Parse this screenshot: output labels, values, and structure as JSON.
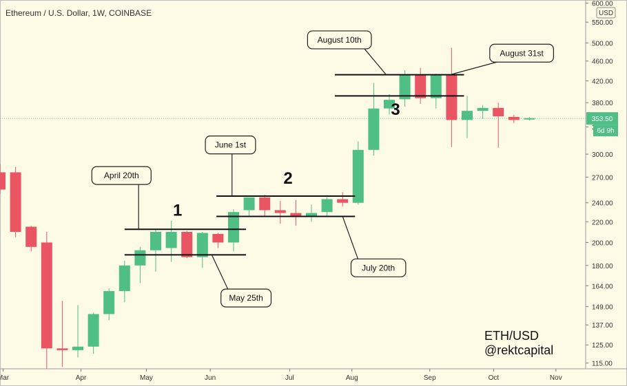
{
  "header": {
    "title": "Ethereum / U.S. Dollar, 1W, COINBASE"
  },
  "axis": {
    "currency_badge": "USD",
    "price_label": "353.50",
    "countdown_label": "6d 9h"
  },
  "watermark": {
    "line1": "ETH/USD",
    "line2": "@rektcapital"
  },
  "colors": {
    "up": "#4fbf86",
    "down": "#ea5563",
    "bg": "#fdfbe6",
    "price_line": "#4fbf86"
  },
  "chart_data": {
    "type": "candlestick",
    "scale": "log",
    "ylim": [
      112,
      605
    ],
    "y_ticks": [
      115,
      125,
      137,
      149,
      164,
      180,
      200,
      220,
      240,
      270,
      300,
      340,
      380,
      420,
      460,
      500,
      550,
      600
    ],
    "y_tick_labels": [
      "115.00",
      "125.00",
      "137.00",
      "149.00",
      "164.00",
      "180.00",
      "200.00",
      "220.00",
      "240.00",
      "270.00",
      "300.00",
      "340.00",
      "380.00",
      "420.00",
      "460.00",
      "500.00",
      "550.00",
      "600.00"
    ],
    "x_labels": [
      "Mar",
      "Apr",
      "May",
      "Jun",
      "Jul",
      "Aug",
      "Sep",
      "Oct",
      "Nov"
    ],
    "x_label_index": [
      0.2,
      5.2,
      9.4,
      13.5,
      18.6,
      22.6,
      27.6,
      31.7,
      35.7
    ],
    "current_price": 353.5,
    "candles": [
      {
        "o": 276,
        "h": 287,
        "c": 255,
        "l": 250
      },
      {
        "o": 276,
        "h": 283,
        "c": 210,
        "l": 205
      },
      {
        "o": 215,
        "h": 216,
        "c": 196,
        "l": 192
      },
      {
        "o": 200,
        "h": 210,
        "c": 123,
        "l": 112
      },
      {
        "o": 123,
        "h": 153,
        "c": 122,
        "l": 113
      },
      {
        "o": 122,
        "h": 150,
        "c": 124,
        "l": 118
      },
      {
        "o": 124,
        "h": 145,
        "c": 144,
        "l": 120
      },
      {
        "o": 144,
        "h": 162,
        "c": 160,
        "l": 140
      },
      {
        "o": 160,
        "h": 184,
        "c": 180,
        "l": 152
      },
      {
        "o": 180,
        "h": 196,
        "c": 193,
        "l": 166
      },
      {
        "o": 193,
        "h": 213,
        "c": 210,
        "l": 175
      },
      {
        "o": 195,
        "h": 221,
        "c": 210,
        "l": 183
      },
      {
        "o": 210,
        "h": 211,
        "c": 187,
        "l": 186
      },
      {
        "o": 187,
        "h": 210,
        "c": 209,
        "l": 178
      },
      {
        "o": 208,
        "h": 209,
        "c": 200,
        "l": 195
      },
      {
        "o": 200,
        "h": 233,
        "c": 230,
        "l": 192
      },
      {
        "o": 232,
        "h": 243,
        "c": 246,
        "l": 225
      },
      {
        "o": 246,
        "h": 249,
        "c": 232,
        "l": 226
      },
      {
        "o": 232,
        "h": 242,
        "c": 229,
        "l": 218
      },
      {
        "o": 229,
        "h": 243,
        "c": 226,
        "l": 216
      },
      {
        "o": 226,
        "h": 238,
        "c": 229,
        "l": 220
      },
      {
        "o": 230,
        "h": 246,
        "c": 244,
        "l": 226
      },
      {
        "o": 244,
        "h": 252,
        "c": 240,
        "l": 236
      },
      {
        "o": 240,
        "h": 318,
        "c": 306,
        "l": 238
      },
      {
        "o": 306,
        "h": 416,
        "c": 370,
        "l": 298
      },
      {
        "o": 370,
        "h": 395,
        "c": 385,
        "l": 360
      },
      {
        "o": 386,
        "h": 441,
        "c": 433,
        "l": 373
      },
      {
        "o": 432,
        "h": 446,
        "c": 388,
        "l": 378
      },
      {
        "o": 388,
        "h": 434,
        "c": 432,
        "l": 370
      },
      {
        "o": 432,
        "h": 489,
        "c": 351,
        "l": 310
      },
      {
        "o": 351,
        "h": 392,
        "c": 366,
        "l": 323
      },
      {
        "o": 366,
        "h": 376,
        "c": 371,
        "l": 353
      },
      {
        "o": 371,
        "h": 380,
        "c": 357,
        "l": 309
      },
      {
        "o": 356,
        "h": 359,
        "c": 351,
        "l": 346
      },
      {
        "o": 352,
        "h": 356,
        "c": 354,
        "l": 350
      }
    ],
    "levels": [
      {
        "y": 212.5,
        "from": 8,
        "to": 15.8
      },
      {
        "y": 189,
        "from": 8,
        "to": 15.8
      },
      {
        "y": 247.5,
        "from": 13.9,
        "to": 22.8
      },
      {
        "y": 225.5,
        "from": 13.9,
        "to": 22.8
      },
      {
        "y": 432,
        "from": 21.5,
        "to": 29.8
      },
      {
        "y": 392,
        "from": 21.5,
        "to": 29.8
      }
    ],
    "zone_labels": [
      {
        "text": "1",
        "i": 11.4,
        "y": 226
      },
      {
        "text": "2",
        "i": 18.5,
        "y": 262
      },
      {
        "text": "3",
        "i": 25.4,
        "y": 359
      }
    ],
    "callouts": [
      {
        "text": "April 20th",
        "i": 7.8,
        "y": 272,
        "ti": 8.9,
        "ty": 212.5
      },
      {
        "text": "May 25th",
        "i": 15.8,
        "y": 155,
        "ti": 13.6,
        "ty": 189
      },
      {
        "text": "June 1st",
        "i": 14.8,
        "y": 313,
        "ti": 14.9,
        "ty": 247.5
      },
      {
        "text": "July 20th",
        "i": 24.3,
        "y": 178,
        "ti": 22.0,
        "ty": 225.5
      },
      {
        "text": "August 10th",
        "i": 21.8,
        "y": 507,
        "ti": 24.8,
        "ty": 432
      },
      {
        "text": "August 31st",
        "i": 33.5,
        "y": 477,
        "ti": 28.9,
        "ty": 432
      }
    ]
  }
}
